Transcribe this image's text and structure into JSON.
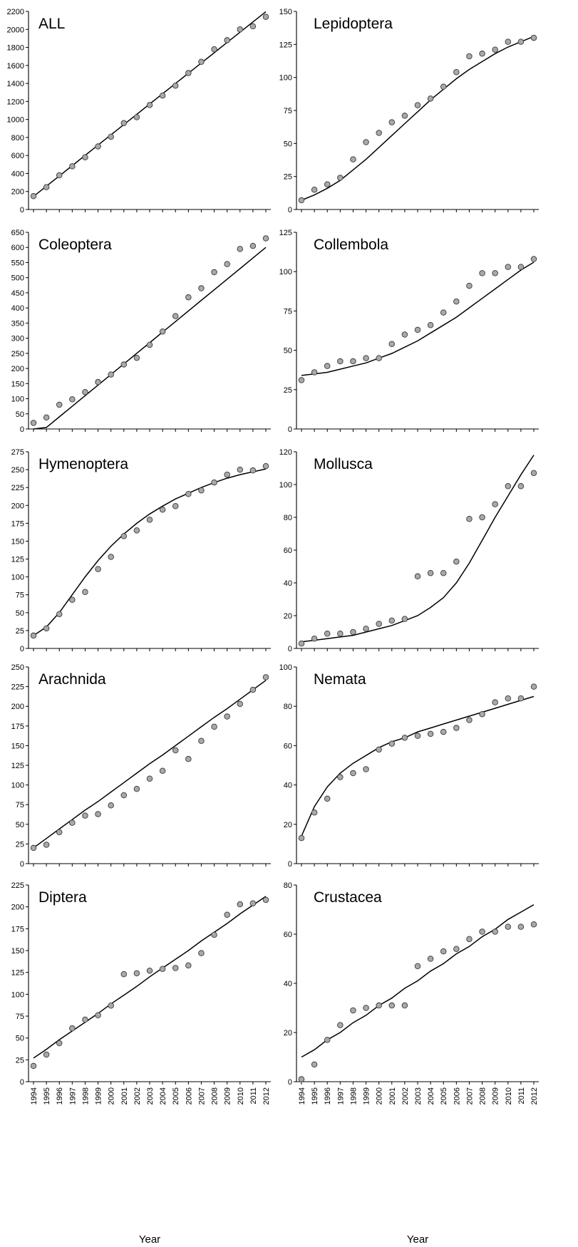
{
  "figure": {
    "x_axis_label": "Year",
    "year_labels": [
      "1994",
      "1995",
      "1996",
      "1997",
      "1998",
      "1999",
      "2000",
      "2001",
      "2002",
      "2003",
      "2004",
      "2005",
      "2006",
      "2007",
      "2008",
      "2009",
      "2010",
      "2011",
      "2012"
    ]
  },
  "chart_data": [
    {
      "type": "scatter",
      "title": "ALL",
      "xlabel": "",
      "ylabel": "",
      "ylim": [
        0,
        2200
      ],
      "yticks": [
        0,
        200,
        400,
        600,
        800,
        1000,
        1200,
        1400,
        1600,
        1800,
        2000,
        2200
      ],
      "show_year_labels": false,
      "grid": false,
      "fit": "linear",
      "x": [
        1994,
        1995,
        1996,
        1997,
        1998,
        1999,
        2000,
        2001,
        2002,
        2003,
        2004,
        2005,
        2006,
        2007,
        2008,
        2009,
        2010,
        2011,
        2012
      ],
      "values": [
        148,
        248,
        380,
        480,
        580,
        700,
        808,
        960,
        1025,
        1160,
        1265,
        1375,
        1515,
        1640,
        1780,
        1880,
        2000,
        2035,
        2140
      ],
      "fit_values": [
        145,
        259,
        373,
        487,
        601,
        715,
        829,
        943,
        1057,
        1171,
        1285,
        1399,
        1513,
        1627,
        1741,
        1855,
        1969,
        2083,
        2197
      ]
    },
    {
      "type": "scatter",
      "title": "Lepidoptera",
      "xlabel": "",
      "ylabel": "",
      "ylim": [
        0,
        150
      ],
      "yticks": [
        0,
        25,
        50,
        75,
        100,
        125,
        150
      ],
      "show_year_labels": false,
      "grid": false,
      "fit": "sigmoid",
      "x": [
        1994,
        1995,
        1996,
        1997,
        1998,
        1999,
        2000,
        2001,
        2002,
        2003,
        2004,
        2005,
        2006,
        2007,
        2008,
        2009,
        2010,
        2011,
        2012
      ],
      "values": [
        7,
        15,
        19,
        24,
        38,
        51,
        58,
        66,
        71,
        79,
        84,
        93,
        104,
        116,
        118,
        121,
        127,
        127,
        130
      ],
      "fit_values": [
        7,
        11,
        16,
        22,
        30,
        38,
        47,
        56,
        65,
        74,
        83,
        91,
        99,
        106,
        112,
        118,
        123,
        127,
        131
      ]
    },
    {
      "type": "scatter",
      "title": "Coleoptera",
      "xlabel": "",
      "ylabel": "",
      "ylim": [
        0,
        650
      ],
      "yticks": [
        0,
        50,
        100,
        150,
        200,
        250,
        300,
        350,
        400,
        450,
        500,
        550,
        600,
        650
      ],
      "show_year_labels": false,
      "grid": false,
      "fit": "linear",
      "x": [
        1994,
        1995,
        1996,
        1997,
        1998,
        1999,
        2000,
        2001,
        2002,
        2003,
        2004,
        2005,
        2006,
        2007,
        2008,
        2009,
        2010,
        2011,
        2012
      ],
      "values": [
        20,
        38,
        80,
        98,
        122,
        155,
        180,
        213,
        235,
        278,
        322,
        373,
        435,
        465,
        518,
        545,
        595,
        605,
        630
      ],
      "fit_values": [
        -30,
        5,
        40,
        75,
        110,
        145,
        180,
        215,
        250,
        285,
        320,
        355,
        390,
        425,
        460,
        495,
        530,
        565,
        600
      ]
    },
    {
      "type": "scatter",
      "title": "Collembola",
      "xlabel": "",
      "ylabel": "",
      "ylim": [
        0,
        125
      ],
      "yticks": [
        0,
        25,
        50,
        75,
        100,
        125
      ],
      "show_year_labels": false,
      "grid": false,
      "fit": "curve",
      "x": [
        1994,
        1995,
        1996,
        1997,
        1998,
        1999,
        2000,
        2001,
        2002,
        2003,
        2004,
        2005,
        2006,
        2007,
        2008,
        2009,
        2010,
        2011,
        2012
      ],
      "values": [
        31,
        36,
        40,
        43,
        43,
        45,
        45,
        54,
        60,
        63,
        66,
        74,
        81,
        91,
        99,
        99,
        103,
        103,
        108
      ],
      "fit_values": [
        34,
        35,
        36,
        38,
        40,
        42,
        45,
        48,
        52,
        56,
        61,
        66,
        71,
        77,
        83,
        89,
        95,
        101,
        106
      ]
    },
    {
      "type": "scatter",
      "title": "Hymenoptera",
      "xlabel": "",
      "ylabel": "",
      "ylim": [
        0,
        275
      ],
      "yticks": [
        0,
        25,
        50,
        75,
        100,
        125,
        150,
        175,
        200,
        225,
        250,
        275
      ],
      "show_year_labels": false,
      "grid": false,
      "fit": "sigmoid",
      "x": [
        1994,
        1995,
        1996,
        1997,
        1998,
        1999,
        2000,
        2001,
        2002,
        2003,
        2004,
        2005,
        2006,
        2007,
        2008,
        2009,
        2010,
        2011,
        2012
      ],
      "values": [
        18,
        28,
        48,
        68,
        79,
        111,
        128,
        157,
        165,
        180,
        194,
        199,
        216,
        221,
        232,
        243,
        250,
        249,
        255
      ],
      "fit_values": [
        18,
        30,
        50,
        75,
        100,
        123,
        143,
        160,
        175,
        188,
        199,
        209,
        217,
        225,
        232,
        238,
        243,
        247,
        251
      ]
    },
    {
      "type": "scatter",
      "title": "Mollusca",
      "xlabel": "",
      "ylabel": "",
      "ylim": [
        0,
        120
      ],
      "yticks": [
        0,
        20,
        40,
        60,
        80,
        100,
        120
      ],
      "show_year_labels": false,
      "grid": false,
      "fit": "curve",
      "x": [
        1994,
        1995,
        1996,
        1997,
        1998,
        1999,
        2000,
        2001,
        2002,
        2003,
        2004,
        2005,
        2006,
        2007,
        2008,
        2009,
        2010,
        2011,
        2012
      ],
      "values": [
        3,
        6,
        9,
        9,
        10,
        12,
        15,
        17,
        18,
        44,
        46,
        46,
        53,
        79,
        80,
        88,
        99,
        99,
        107
      ],
      "fit_values": [
        4,
        5,
        6,
        7,
        8,
        10,
        12,
        14,
        17,
        20,
        25,
        31,
        40,
        52,
        66,
        80,
        93,
        106,
        118
      ]
    },
    {
      "type": "scatter",
      "title": "Arachnida",
      "xlabel": "",
      "ylabel": "",
      "ylim": [
        0,
        250
      ],
      "yticks": [
        0,
        25,
        50,
        75,
        100,
        125,
        150,
        175,
        200,
        225,
        250
      ],
      "show_year_labels": false,
      "grid": false,
      "fit": "linear",
      "x": [
        1994,
        1995,
        1996,
        1997,
        1998,
        1999,
        2000,
        2001,
        2002,
        2003,
        2004,
        2005,
        2006,
        2007,
        2008,
        2009,
        2010,
        2011,
        2012
      ],
      "values": [
        20,
        24,
        40,
        52,
        61,
        63,
        74,
        87,
        95,
        108,
        118,
        144,
        133,
        156,
        174,
        187,
        203,
        221,
        237
      ],
      "fit_values": [
        20,
        32,
        44,
        56,
        68,
        79,
        91,
        103,
        115,
        127,
        138,
        150,
        162,
        174,
        186,
        197,
        209,
        221,
        233
      ]
    },
    {
      "type": "scatter",
      "title": "Nemata",
      "xlabel": "",
      "ylabel": "",
      "ylim": [
        0,
        100
      ],
      "yticks": [
        0,
        20,
        40,
        60,
        80,
        100
      ],
      "show_year_labels": false,
      "grid": false,
      "fit": "curve",
      "x": [
        1994,
        1995,
        1996,
        1997,
        1998,
        1999,
        2000,
        2001,
        2002,
        2003,
        2004,
        2005,
        2006,
        2007,
        2008,
        2009,
        2010,
        2011,
        2012
      ],
      "values": [
        13,
        26,
        33,
        44,
        46,
        48,
        58,
        61,
        64,
        65,
        66,
        67,
        69,
        73,
        76,
        82,
        84,
        84,
        90
      ],
      "fit_values": [
        14,
        29,
        39,
        46,
        51,
        55,
        59,
        62,
        64,
        67,
        69,
        71,
        73,
        75,
        77,
        79,
        81,
        83,
        85
      ]
    },
    {
      "type": "scatter",
      "title": "Diptera",
      "xlabel": "Year",
      "ylabel": "",
      "ylim": [
        0,
        225
      ],
      "yticks": [
        0,
        25,
        50,
        75,
        100,
        125,
        150,
        175,
        200,
        225
      ],
      "show_year_labels": true,
      "grid": false,
      "fit": "linear",
      "x": [
        1994,
        1995,
        1996,
        1997,
        1998,
        1999,
        2000,
        2001,
        2002,
        2003,
        2004,
        2005,
        2006,
        2007,
        2008,
        2009,
        2010,
        2011,
        2012
      ],
      "values": [
        18,
        31,
        44,
        61,
        71,
        76,
        87,
        123,
        124,
        127,
        129,
        130,
        133,
        147,
        168,
        191,
        203,
        204,
        208
      ],
      "fit_values": [
        27,
        37,
        48,
        58,
        68,
        78,
        89,
        99,
        109,
        120,
        130,
        140,
        150,
        161,
        171,
        181,
        192,
        202,
        212
      ]
    },
    {
      "type": "scatter",
      "title": "Crustacea",
      "xlabel": "Year",
      "ylabel": "",
      "ylim": [
        0,
        80
      ],
      "yticks": [
        0,
        20,
        40,
        60,
        80
      ],
      "show_year_labels": true,
      "grid": false,
      "fit": "linear",
      "x": [
        1994,
        1995,
        1996,
        1997,
        1998,
        1999,
        2000,
        2001,
        2002,
        2003,
        2004,
        2005,
        2006,
        2007,
        2008,
        2009,
        2010,
        2011,
        2012
      ],
      "values": [
        1,
        7,
        17,
        23,
        29,
        30,
        31,
        31,
        31,
        47,
        50,
        53,
        54,
        58,
        61,
        61,
        63,
        63,
        64
      ],
      "fit_values": [
        10,
        13,
        17,
        20,
        24,
        27,
        31,
        34,
        38,
        41,
        45,
        48,
        52,
        55,
        59,
        62,
        66,
        69,
        72
      ]
    }
  ]
}
